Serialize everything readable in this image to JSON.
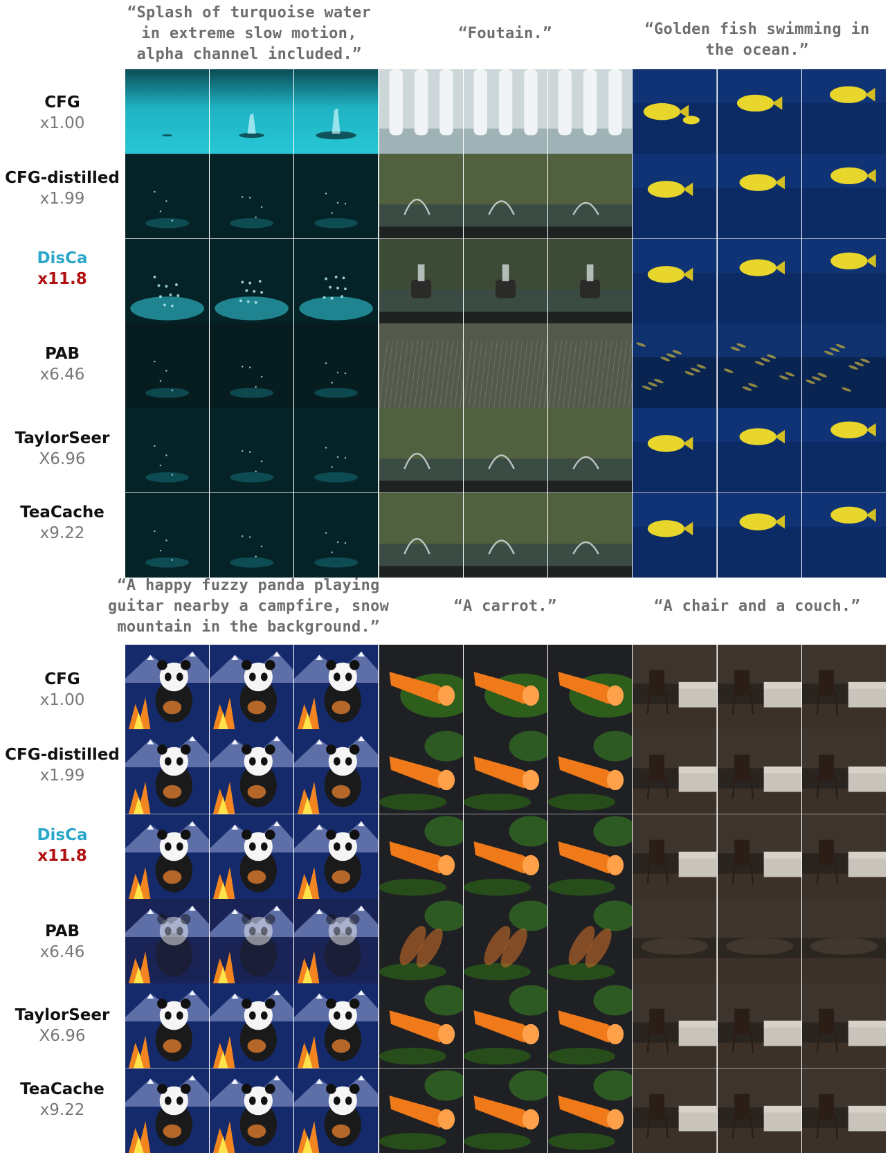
{
  "top_block": {
    "prompts": [
      "“Splash of turquoise water\nin extreme slow motion,\nalpha channel included.”",
      "“Foutain.”",
      "“Golden fish swimming in\nthe ocean.”"
    ]
  },
  "bottom_block": {
    "prompts": [
      "“A happy fuzzy panda playing\nguitar nearby a campfire, snow\nmountain in the background.”",
      "“A carrot.”",
      "“A chair and a couch.”"
    ]
  },
  "methods": [
    {
      "name": "CFG",
      "speedup": "x1.00"
    },
    {
      "name": "CFG-distilled",
      "speedup": "x1.99"
    },
    {
      "name": "DisCa",
      "speedup": "x11.8",
      "highlight": true
    },
    {
      "name": "PAB",
      "speedup": "x6.46"
    },
    {
      "name": "TaylorSeer",
      "speedup": "X6.96"
    },
    {
      "name": "TeaCache",
      "speedup": "x9.22"
    }
  ],
  "colors": {
    "prompt_text": "#6e6e6e",
    "method_name": "#111111",
    "speedup_text": "#777777",
    "disca_name": "#2aa6c9",
    "disca_speedup": "#b01010"
  },
  "frames_per_prompt": 3
}
